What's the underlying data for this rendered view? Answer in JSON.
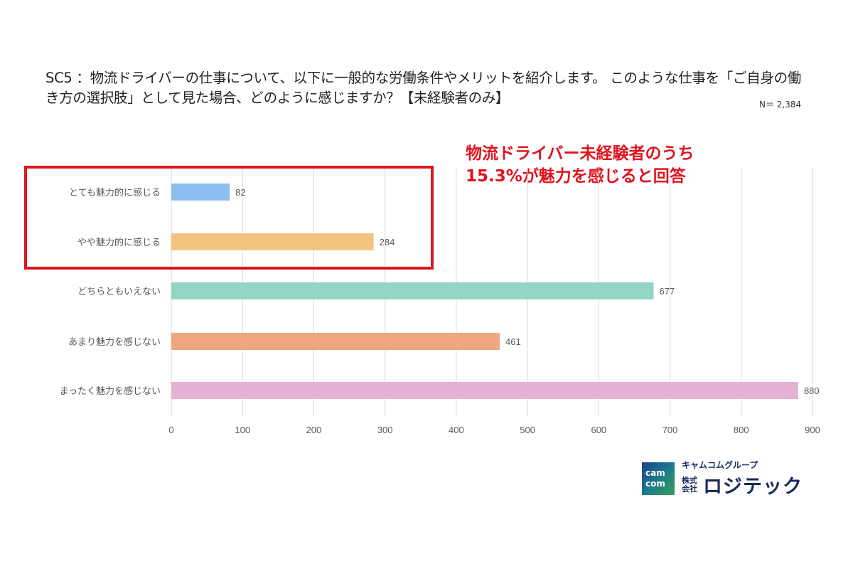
{
  "title": "SC5 ：物流ドライバーの仕事について、以下に一般的な労働条件やメリットを紹介します。 このような仕事を「ご自身の働き方の選択肢」として見た場合、どのように感じますか？【未経験者のみ】",
  "n_label": "N＝ 2,384",
  "callout": {
    "line1": "物流ドライバー未経験者のうち",
    "line2": "15.3%が魅力を感じると回答"
  },
  "logo": {
    "mark_line1": "cam",
    "mark_line2": "com",
    "group": "キャムコムグループ",
    "kk": "株式会社",
    "name": "ロジテック"
  },
  "chart_data": {
    "type": "bar",
    "orientation": "horizontal",
    "categories": [
      "とても魅力的に感じる",
      "やや魅力的に感じる",
      "どちらともいえない",
      "あまり魅力を感じない",
      "まったく魅力を感じない"
    ],
    "values": [
      82,
      284,
      677,
      461,
      880
    ],
    "colors": [
      "#8bbff0",
      "#f3c47f",
      "#93d4c3",
      "#f0a67e",
      "#e6b2d3"
    ],
    "xlim": [
      0,
      900
    ],
    "ticks": [
      0,
      100,
      200,
      300,
      400,
      500,
      600,
      700,
      800,
      900
    ],
    "grid": true
  }
}
